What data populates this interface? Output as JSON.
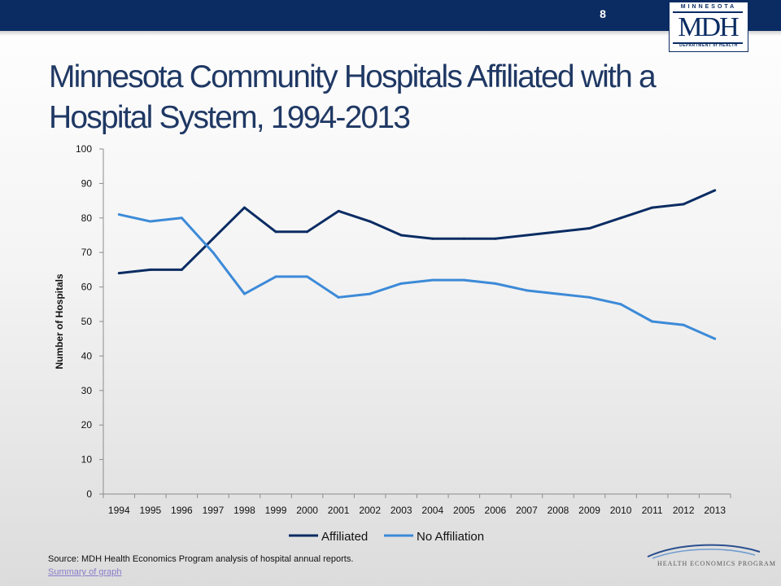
{
  "header": {
    "slide_number": "8",
    "logo": {
      "top_text": "MINNESOTA",
      "main_text": "MDH",
      "bottom_text": "DEPARTMENT of HEALTH"
    }
  },
  "title": "Minnesota Community Hospitals Affiliated with a Hospital System, 1994-2013",
  "footer": {
    "source": "Source: MDH Health Economics Program analysis of hospital annual reports.",
    "summary_link": "Summary of graph",
    "program_logo_text": "HEALTH ECONOMICS PROGRAM"
  },
  "colors": {
    "header": "#0b2c63",
    "affiliated": "#0b2c63",
    "no_affiliation": "#3c8ad8",
    "link": "#8a7cc9"
  },
  "chart_data": {
    "type": "line",
    "title": "",
    "xlabel": "",
    "ylabel": "Number of Hospitals",
    "ylim": [
      0,
      100
    ],
    "yticks": [
      0,
      10,
      20,
      30,
      40,
      50,
      60,
      70,
      80,
      90,
      100
    ],
    "grid": false,
    "legend": "bottom",
    "categories": [
      "1994",
      "1995",
      "1996",
      "1997",
      "1998",
      "1999",
      "2000",
      "2001",
      "2002",
      "2003",
      "2004",
      "2005",
      "2006",
      "2007",
      "2008",
      "2009",
      "2010",
      "2011",
      "2012",
      "2013"
    ],
    "series": [
      {
        "name": "Affiliated",
        "color": "#0b2c63",
        "values": [
          64,
          65,
          65,
          74,
          83,
          76,
          76,
          82,
          79,
          75,
          74,
          74,
          74,
          75,
          76,
          77,
          80,
          83,
          84,
          88
        ]
      },
      {
        "name": "No Affiliation",
        "color": "#3c8ad8",
        "values": [
          81,
          79,
          80,
          70,
          58,
          63,
          63,
          57,
          58,
          61,
          62,
          62,
          61,
          59,
          58,
          57,
          55,
          50,
          49,
          45
        ]
      }
    ]
  }
}
